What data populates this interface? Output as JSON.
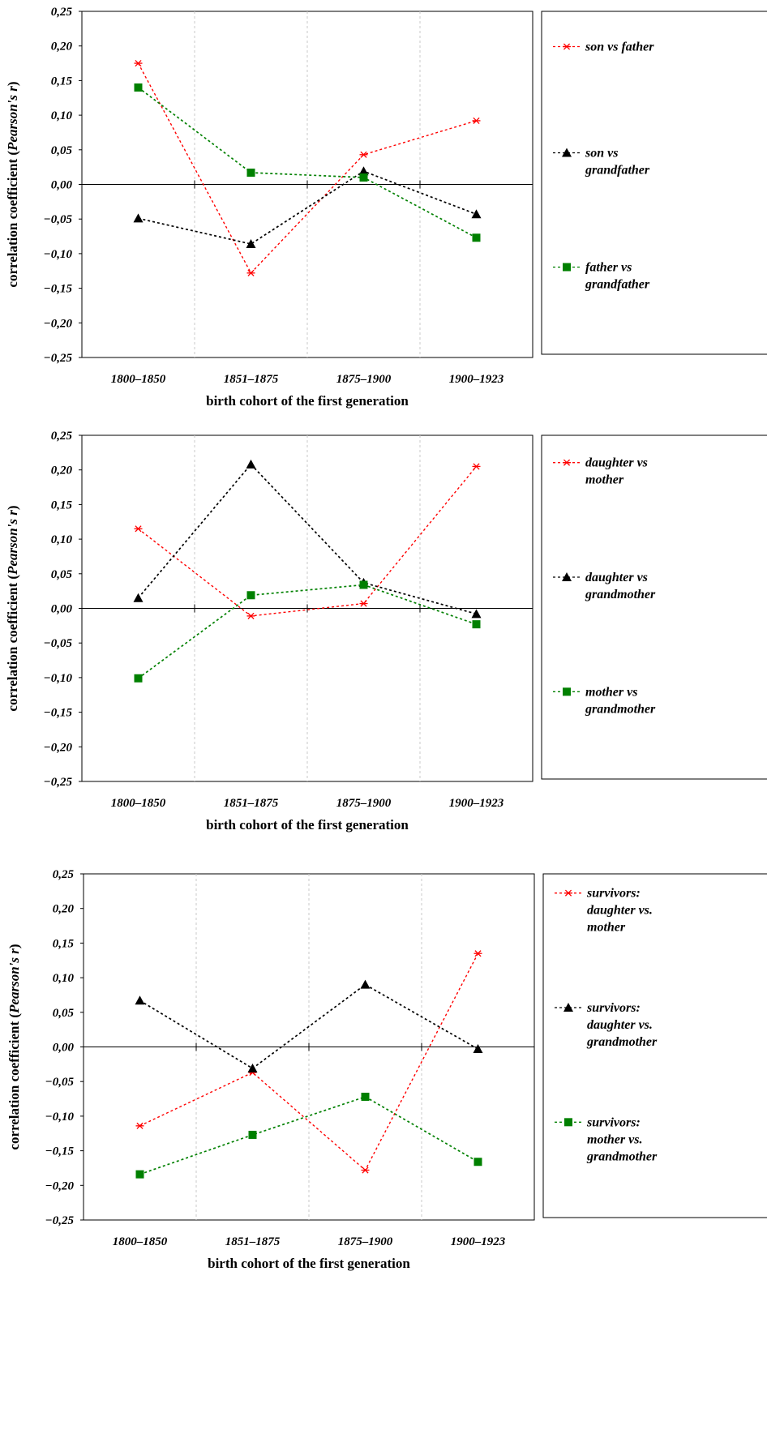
{
  "chart_data": [
    {
      "type": "line",
      "xlabel": "birth cohort of the first generation",
      "ylabel": "correlation coefficient (Pearson's r)",
      "categories": [
        "1800-1850",
        "1851-1875",
        "1875-1900",
        "1900-1923"
      ],
      "ylim": [
        -0.25,
        0.25
      ],
      "yticks": [
        "0,25",
        "0,20",
        "0,15",
        "0,10",
        "0,05",
        "0,00",
        "-0,05",
        "-0,10",
        "-0,15",
        "-0,20",
        "-0,25"
      ],
      "grid": "vertical dashed",
      "legend_position": "right",
      "series": [
        {
          "name_lines": [
            "son vs father"
          ],
          "color": "#ff0000",
          "marker": "asterisk",
          "values": [
            0.175,
            -0.128,
            0.043,
            0.092
          ]
        },
        {
          "name_lines": [
            "son vs",
            "grandfather"
          ],
          "color": "#000000",
          "marker": "triangle",
          "values": [
            -0.049,
            -0.086,
            0.019,
            -0.043
          ]
        },
        {
          "name_lines": [
            "father vs",
            "grandfather"
          ],
          "color": "#008000",
          "marker": "square",
          "values": [
            0.14,
            0.017,
            0.01,
            -0.077
          ]
        }
      ]
    },
    {
      "type": "line",
      "xlabel": "birth cohort of the first generation",
      "ylabel": "correlation coefficient (Pearson's r)",
      "categories": [
        "1800-1850",
        "1851-1875",
        "1875-1900",
        "1900-1923"
      ],
      "ylim": [
        -0.25,
        0.25
      ],
      "yticks": [
        "0,25",
        "0,20",
        "0,15",
        "0,10",
        "0,05",
        "0,00",
        "-0,05",
        "-0,10",
        "-0,15",
        "-0,20",
        "-0,25"
      ],
      "grid": "vertical dashed",
      "legend_position": "right",
      "series": [
        {
          "name_lines": [
            "daughter vs",
            "mother"
          ],
          "color": "#ff0000",
          "marker": "asterisk",
          "values": [
            0.115,
            -0.011,
            0.007,
            0.205
          ]
        },
        {
          "name_lines": [
            "daughter vs",
            "grandmother"
          ],
          "color": "#000000",
          "marker": "triangle",
          "values": [
            0.015,
            0.208,
            0.037,
            -0.008
          ]
        },
        {
          "name_lines": [
            "mother vs",
            "grandmother"
          ],
          "color": "#008000",
          "marker": "square",
          "values": [
            -0.101,
            0.019,
            0.034,
            -0.023
          ]
        }
      ]
    },
    {
      "type": "line",
      "xlabel": "birth cohort of the first generation",
      "ylabel": "correlation coefficient (Pearson's r)",
      "categories": [
        "1800-1850",
        "1851-1875",
        "1875-1900",
        "1900-1923"
      ],
      "ylim": [
        -0.25,
        0.25
      ],
      "yticks": [
        "0,25",
        "0,20",
        "0,15",
        "0,10",
        "0,05",
        "0,00",
        "-0,05",
        "-0,10",
        "-0,15",
        "-0,20",
        "-0,25"
      ],
      "grid": "vertical dashed",
      "legend_position": "right",
      "series": [
        {
          "name_lines": [
            "survivors:",
            "daughter vs.",
            "mother"
          ],
          "color": "#ff0000",
          "marker": "asterisk",
          "values": [
            -0.114,
            -0.037,
            -0.178,
            0.135
          ]
        },
        {
          "name_lines": [
            "survivors:",
            "daughter vs.",
            "grandmother"
          ],
          "color": "#000000",
          "marker": "triangle",
          "values": [
            0.067,
            -0.031,
            0.09,
            -0.003
          ]
        },
        {
          "name_lines": [
            "survivors:",
            "mother vs.",
            "grandmother"
          ],
          "color": "#008000",
          "marker": "square",
          "values": [
            -0.184,
            -0.127,
            -0.072,
            -0.166
          ]
        }
      ]
    }
  ]
}
